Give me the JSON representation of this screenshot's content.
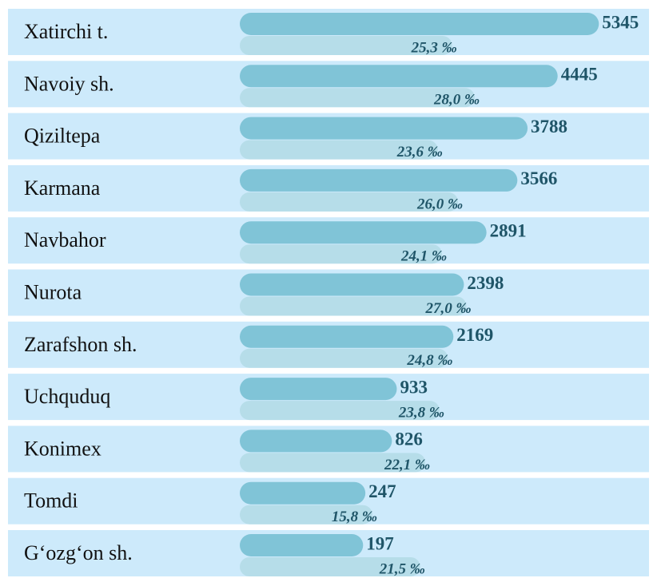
{
  "chart_data": {
    "type": "bar",
    "categories": [
      "Xatirchi t.",
      "Navoiy  sh.",
      "Qiziltepa",
      "Karmana",
      "Navbahor",
      "Nurota",
      "Zarafshon sh.",
      "Uchquduq",
      "Konimex",
      "Tomdi",
      "G‘ozg‘on sh."
    ],
    "series": [
      {
        "color": "#80c4d7",
        "values": [
          5345,
          4445,
          3788,
          3566,
          2891,
          2398,
          2169,
          933,
          826,
          247,
          197
        ]
      },
      {
        "color": "#b6dde9",
        "values": [
          25.3,
          28.0,
          23.6,
          26.0,
          24.1,
          27.0,
          24.8,
          23.8,
          22.1,
          15.8,
          21.5
        ],
        "value_labels": [
          "25,3 ‰",
          "28,0 ‰",
          "23,6 ‰",
          "26,0 ‰",
          "24,1 ‰",
          "27,0 ‰",
          "24,8 ‰",
          "23,8 ‰",
          "22,1 ‰",
          "15,8 ‰",
          "21,5 ‰"
        ]
      }
    ]
  }
}
